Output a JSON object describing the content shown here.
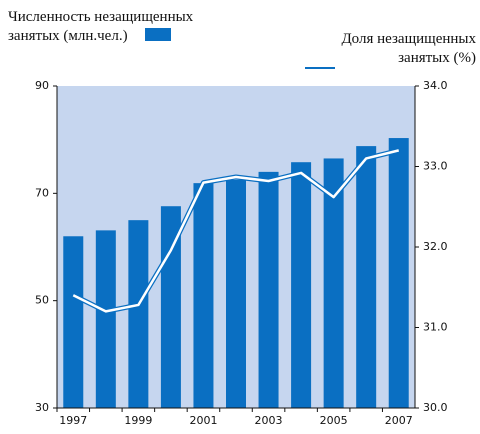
{
  "chart_data": {
    "type": "bar-line",
    "categories": [
      "1997",
      null,
      "1999",
      null,
      "2001",
      null,
      "2003",
      null,
      "2005",
      null,
      "2007"
    ],
    "series": [
      {
        "name": "Численность незащищенных занятых (млн.чел.)",
        "color": "#0a6fc2",
        "type": "bar",
        "axis": "y",
        "values": [
          62,
          63.1,
          65,
          67.6,
          71.9,
          72.5,
          74,
          75.8,
          76.5,
          78.8,
          80.3
        ]
      },
      {
        "name": "Доля незащищенных занятых (%)",
        "color": "#0a6fc2",
        "type": "line",
        "axis": "y2",
        "values": [
          31.4,
          31.2,
          31.28,
          31.96,
          32.8,
          32.87,
          32.82,
          32.92,
          32.62,
          33.1,
          33.2
        ]
      }
    ],
    "ylim": [
      30,
      90
    ],
    "yticks": [
      30,
      50,
      70,
      90
    ],
    "y2lim": [
      30,
      34
    ],
    "y2ticks": [
      {
        "value": 30,
        "label": "30.0"
      },
      {
        "value": 31,
        "label": "31.0"
      },
      {
        "value": 32,
        "label": "32.0"
      },
      {
        "value": 33,
        "label": "33.0"
      },
      {
        "value": 34,
        "label": "34.0"
      }
    ],
    "background": "#c6d6ef"
  }
}
